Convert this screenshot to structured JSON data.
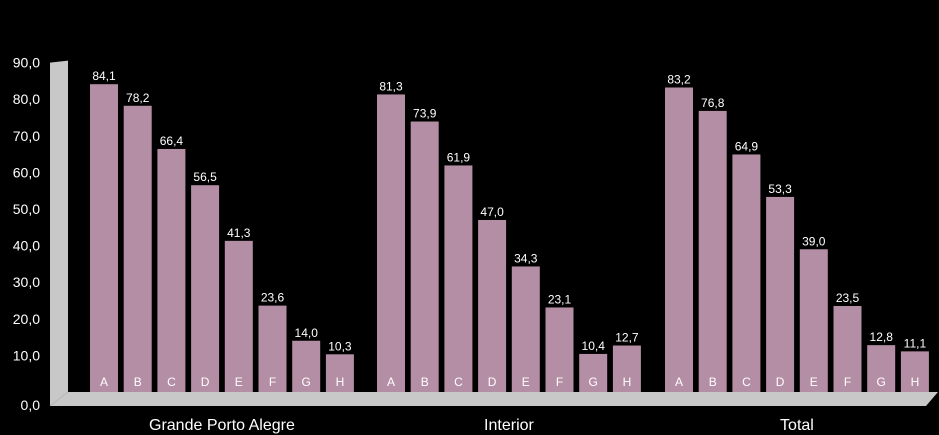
{
  "chart_data": {
    "type": "bar",
    "title": "",
    "xlabel": "",
    "ylabel": "",
    "ylim": [
      0,
      90
    ],
    "ytick_labels": [
      "0,0",
      "10,0",
      "20,0",
      "30,0",
      "40,0",
      "50,0",
      "60,0",
      "70,0",
      "80,0",
      "90,0"
    ],
    "grid": false,
    "bar_color": "#b48ea4",
    "axis_color": "#c8c8c8",
    "groups": [
      {
        "name": "Grande Porto Alegre",
        "categories": [
          "A",
          "B",
          "C",
          "D",
          "E",
          "F",
          "G",
          "H"
        ],
        "values": [
          84.1,
          78.2,
          66.4,
          56.5,
          41.3,
          23.6,
          14.0,
          10.3
        ],
        "value_labels": [
          "84,1",
          "78,2",
          "66,4",
          "56,5",
          "41,3",
          "23,6",
          "14,0",
          "10,3"
        ]
      },
      {
        "name": "Interior",
        "categories": [
          "A",
          "B",
          "C",
          "D",
          "E",
          "F",
          "G",
          "H"
        ],
        "values": [
          81.3,
          73.9,
          61.9,
          47.0,
          34.3,
          23.1,
          10.4,
          12.7
        ],
        "value_labels": [
          "81,3",
          "73,9",
          "61,9",
          "47,0",
          "34,3",
          "23,1",
          "10,4",
          "12,7"
        ]
      },
      {
        "name": "Total",
        "categories": [
          "A",
          "B",
          "C",
          "D",
          "E",
          "F",
          "G",
          "H"
        ],
        "values": [
          83.2,
          76.8,
          64.9,
          53.3,
          39.0,
          23.5,
          12.8,
          11.1
        ],
        "value_labels": [
          "83,2",
          "76,8",
          "64,9",
          "53,3",
          "39,0",
          "23,5",
          "12,8",
          "11,1"
        ]
      }
    ]
  }
}
